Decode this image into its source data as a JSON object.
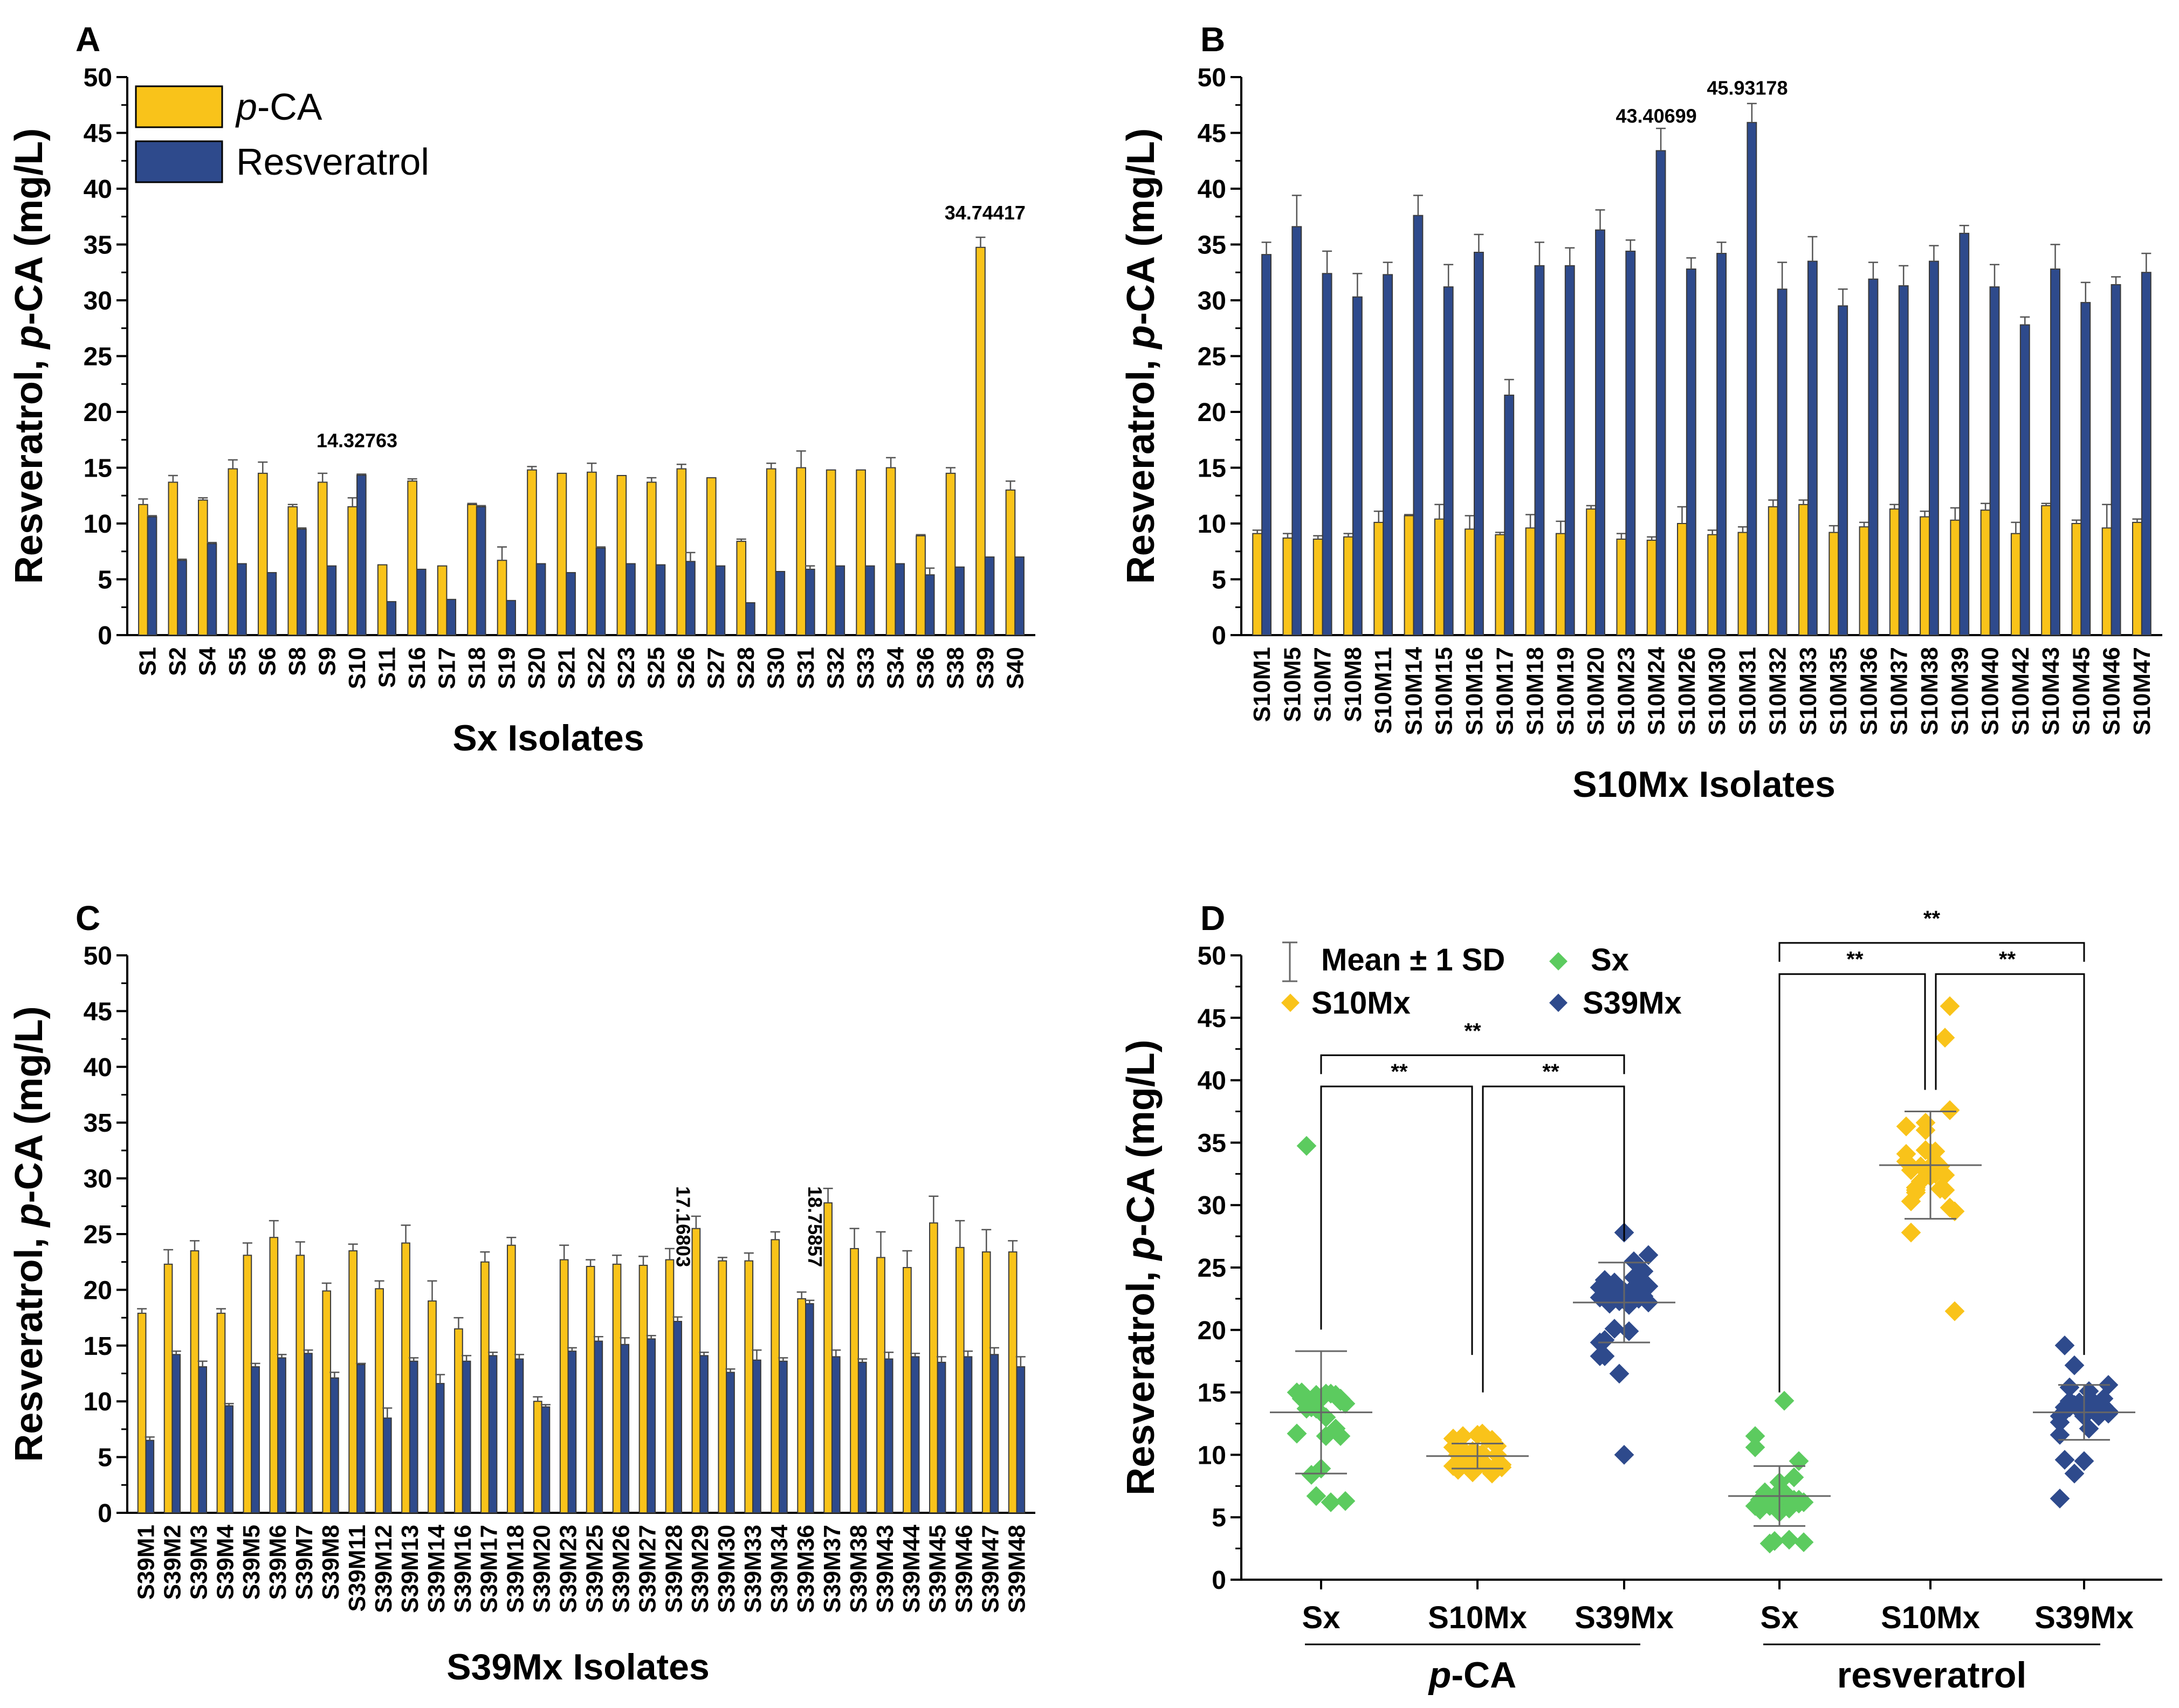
{
  "colors": {
    "pca": "#F9C31A",
    "res": "#2E4A8C",
    "green": "#5CCB5F",
    "yellow": "#F9C31A",
    "navy": "#2E4A8C"
  },
  "chart_data": [
    {
      "panel": "A",
      "type": "bar",
      "ylabel_parts": [
        "Resveratrol, ",
        "p",
        "-CA (mg/L)"
      ],
      "xlabel": "Sx Isolates",
      "ylim": [
        0,
        50
      ],
      "yticks": [
        0,
        5,
        10,
        15,
        20,
        25,
        30,
        35,
        40,
        45,
        50
      ],
      "legend": [
        {
          "name": "p-CA",
          "italic": "p",
          "rest": "-CA"
        },
        {
          "name": "Resveratrol"
        }
      ],
      "categories": [
        "S1",
        "S2",
        "S4",
        "S5",
        "S6",
        "S8",
        "S9",
        "S10",
        "S11",
        "S16",
        "S17",
        "S18",
        "S19",
        "S20",
        "S21",
        "S22",
        "S23",
        "S25",
        "S26",
        "S27",
        "S28",
        "S30",
        "S31",
        "S32",
        "S33",
        "S34",
        "S36",
        "S38",
        "S39",
        "S40"
      ],
      "series": [
        {
          "name": "p-CA",
          "values": [
            11.7,
            13.7,
            12.1,
            14.9,
            14.5,
            11.5,
            13.7,
            11.5,
            6.3,
            13.8,
            6.2,
            11.7,
            6.7,
            14.8,
            14.5,
            14.6,
            14.3,
            13.7,
            14.9,
            14.1,
            8.4,
            14.9,
            15.0,
            14.8,
            14.8,
            15.0,
            8.9,
            14.5,
            34.74417,
            13.0
          ],
          "errors": [
            0.5,
            0.6,
            0.2,
            0.8,
            1.0,
            0.2,
            0.8,
            0.8,
            0,
            0.2,
            0,
            0.1,
            1.2,
            0.3,
            0,
            0.8,
            0,
            0.4,
            0.4,
            0,
            0.2,
            0.5,
            1.5,
            0,
            0,
            0.9,
            0.1,
            0.5,
            0.9,
            0.8
          ]
        },
        {
          "name": "Resveratrol",
          "values": [
            10.6,
            6.7,
            8.2,
            6.4,
            5.6,
            9.5,
            6.2,
            14.32763,
            3.0,
            5.9,
            3.2,
            11.5,
            3.1,
            6.4,
            5.6,
            7.8,
            6.4,
            6.3,
            6.6,
            6.2,
            2.9,
            5.7,
            5.9,
            6.2,
            6.2,
            6.4,
            5.4,
            6.1,
            7.0,
            7.0
          ],
          "errors": [
            0.1,
            0.1,
            0.1,
            0,
            0,
            0.1,
            0,
            0.1,
            0,
            0,
            0,
            0.1,
            0,
            0,
            0,
            0.1,
            0,
            0,
            0.8,
            0,
            0,
            0,
            0.3,
            0,
            0,
            0,
            0.6,
            0,
            0,
            0
          ]
        }
      ],
      "annotations": [
        {
          "text": "14.32763",
          "category": "S10",
          "value": 14.32763
        },
        {
          "text": "34.74417",
          "category": "S39",
          "value": 34.74417
        }
      ]
    },
    {
      "panel": "B",
      "type": "bar",
      "ylabel_parts": [
        "Resveratrol, ",
        "p",
        "-CA (mg/L)"
      ],
      "xlabel": "S10Mx Isolates",
      "ylim": [
        0,
        50
      ],
      "yticks": [
        0,
        5,
        10,
        15,
        20,
        25,
        30,
        35,
        40,
        45,
        50
      ],
      "categories": [
        "S10M1",
        "S10M5",
        "S10M7",
        "S10M8",
        "S10M11",
        "S10M14",
        "S10M15",
        "S10M16",
        "S10M17",
        "S10M18",
        "S10M19",
        "S10M20",
        "S10M23",
        "S10M24",
        "S10M26",
        "S10M30",
        "S10M31",
        "S10M32",
        "S10M33",
        "S10M35",
        "S10M36",
        "S10M37",
        "S10M38",
        "S10M39",
        "S10M40",
        "S10M42",
        "S10M43",
        "S10M45",
        "S10M46",
        "S10M47"
      ],
      "series": [
        {
          "name": "p-CA",
          "values": [
            9.1,
            8.7,
            8.6,
            8.8,
            10.1,
            10.7,
            10.4,
            9.5,
            9.0,
            9.6,
            9.1,
            11.3,
            8.6,
            8.5,
            10.0,
            9.0,
            9.2,
            11.5,
            11.7,
            9.2,
            9.7,
            11.3,
            10.6,
            10.3,
            11.2,
            9.1,
            11.6,
            10.0,
            9.6,
            10.1
          ],
          "errors": [
            0.3,
            0.4,
            0.3,
            0.3,
            1.0,
            0.1,
            1.3,
            1.2,
            0.2,
            1.2,
            1.1,
            0.3,
            0.5,
            0.3,
            1.5,
            0.4,
            0.5,
            0.6,
            0.4,
            0.6,
            0.4,
            0.4,
            0.5,
            1.1,
            0.6,
            1.0,
            0.2,
            0.3,
            2.1,
            0.3
          ]
        },
        {
          "name": "Resveratrol",
          "values": [
            34.1,
            36.6,
            32.4,
            30.3,
            32.3,
            37.6,
            31.2,
            34.3,
            21.5,
            33.1,
            33.1,
            36.3,
            34.4,
            43.40699,
            32.8,
            34.2,
            45.93178,
            31.0,
            33.5,
            29.5,
            31.9,
            31.3,
            33.5,
            36.0,
            31.2,
            27.8,
            32.8,
            29.8,
            31.4,
            32.5
          ],
          "errors": [
            1.1,
            2.8,
            2.0,
            2.1,
            1.1,
            1.8,
            2.0,
            1.6,
            1.4,
            2.1,
            1.6,
            1.8,
            1.0,
            2.0,
            1.0,
            1.0,
            1.7,
            2.4,
            2.2,
            1.5,
            1.5,
            1.8,
            1.4,
            0.7,
            2.0,
            0.7,
            2.2,
            1.8,
            0.7,
            1.7
          ]
        }
      ],
      "annotations": [
        {
          "text": "43.40699",
          "category": "S10M24",
          "value": 43.40699
        },
        {
          "text": "45.93178",
          "category": "S10M31",
          "value": 45.93178
        }
      ]
    },
    {
      "panel": "C",
      "type": "bar",
      "ylabel_parts": [
        "Resveratrol, ",
        "p",
        "-CA (mg/L)"
      ],
      "xlabel": "S39Mx Isolates",
      "ylim": [
        0,
        50
      ],
      "yticks": [
        0,
        5,
        10,
        15,
        20,
        25,
        30,
        35,
        40,
        45,
        50
      ],
      "categories": [
        "S39M1",
        "S39M2",
        "S39M3",
        "S39M4",
        "S39M5",
        "S39M6",
        "S39M7",
        "S39M8",
        "S39M11",
        "S39M12",
        "S39M13",
        "S39M14",
        "S39M16",
        "S39M17",
        "S39M18",
        "S39M20",
        "S39M23",
        "S39M25",
        "S39M26",
        "S39M27",
        "S39M28",
        "S39M29",
        "S39M30",
        "S39M33",
        "S39M34",
        "S39M36",
        "S39M37",
        "S39M38",
        "S39M43",
        "S39M44",
        "S39M45",
        "S39M46",
        "S39M47",
        "S39M48"
      ],
      "series": [
        {
          "name": "p-CA",
          "values": [
            17.9,
            22.3,
            23.5,
            17.9,
            23.1,
            24.7,
            23.1,
            19.9,
            23.5,
            20.1,
            24.2,
            19.0,
            16.5,
            22.5,
            24.0,
            10.0,
            22.7,
            22.1,
            22.3,
            22.2,
            22.7,
            25.5,
            22.6,
            22.6,
            24.5,
            19.2,
            27.8,
            23.7,
            22.9,
            22.0,
            26.0,
            23.8,
            23.4,
            23.4
          ],
          "errors": [
            0.4,
            1.3,
            0.9,
            0.4,
            1.1,
            1.5,
            1.2,
            0.7,
            0.6,
            0.7,
            1.6,
            1.8,
            1.0,
            0.9,
            0.7,
            0.4,
            1.3,
            0.6,
            0.8,
            0.8,
            1.0,
            1.1,
            0.3,
            0.7,
            0.7,
            0.6,
            1.3,
            1.8,
            2.3,
            1.5,
            2.4,
            2.4,
            2.0,
            1.0
          ]
        },
        {
          "name": "Resveratrol",
          "values": [
            6.5,
            14.2,
            13.1,
            9.6,
            13.1,
            13.9,
            14.3,
            12.1,
            13.3,
            8.5,
            13.6,
            11.6,
            13.6,
            14.1,
            13.8,
            9.5,
            14.5,
            15.4,
            15.1,
            15.6,
            17.16803,
            14.1,
            12.6,
            13.7,
            13.6,
            18.75857,
            14.0,
            13.5,
            13.8,
            14.0,
            13.5,
            14.0,
            14.2,
            13.1
          ],
          "errors": [
            0.3,
            0.3,
            0.5,
            0.2,
            0.3,
            0.3,
            0.3,
            0.5,
            0.1,
            0.9,
            0.3,
            0.8,
            0.5,
            0.3,
            0.4,
            0.2,
            0.3,
            0.4,
            0.6,
            0.3,
            0.4,
            0.3,
            0.3,
            0.9,
            0.3,
            0.3,
            0.6,
            0.3,
            0.6,
            0.3,
            0.5,
            0.5,
            0.6,
            0.9
          ]
        }
      ],
      "annotations": [
        {
          "text": "17.16803",
          "category": "S39M28",
          "value": 17.16803,
          "rotated": true
        },
        {
          "text": "18.75857",
          "category": "S39M36",
          "value": 18.75857,
          "rotated": true
        }
      ]
    },
    {
      "panel": "D",
      "type": "scatter",
      "ylabel_parts": [
        "Resveratrol, ",
        "p",
        "-CA (mg/L)"
      ],
      "ylim": [
        0,
        50
      ],
      "yticks": [
        0,
        5,
        10,
        15,
        20,
        25,
        30,
        35,
        40,
        45,
        50
      ],
      "categories": [
        "Sx",
        "S10Mx",
        "S39Mx",
        "Sx",
        "S10Mx",
        "S39Mx"
      ],
      "groups": [
        {
          "label_parts": [
            "p",
            "-CA"
          ],
          "span": [
            0,
            2
          ]
        },
        {
          "label_parts": [
            "resveratrol"
          ],
          "span": [
            3,
            5
          ]
        }
      ],
      "legend": [
        {
          "name": "Mean ± 1 SD",
          "marker": "errorbar"
        },
        {
          "name": "Sx",
          "marker": "green"
        },
        {
          "name": "S10Mx",
          "marker": "yellow"
        },
        {
          "name": "S39Mx",
          "marker": "navy"
        }
      ],
      "series": [
        {
          "name": "Sx p-CA",
          "color": "green",
          "mean": 13.4,
          "sd": 4.9,
          "values": [
            11.7,
            13.7,
            12.1,
            14.9,
            14.5,
            11.5,
            13.7,
            11.5,
            6.3,
            13.8,
            6.2,
            11.7,
            6.7,
            14.8,
            14.5,
            14.6,
            14.3,
            13.7,
            14.9,
            14.1,
            8.4,
            14.9,
            15.0,
            14.8,
            14.8,
            15.0,
            8.9,
            14.5,
            34.74417,
            13.0
          ]
        },
        {
          "name": "S10Mx p-CA",
          "color": "yellow",
          "mean": 9.9,
          "sd": 1.0,
          "values": [
            9.1,
            8.7,
            8.6,
            8.8,
            10.1,
            10.7,
            10.4,
            9.5,
            9.0,
            9.6,
            9.1,
            11.3,
            8.6,
            8.5,
            10.0,
            9.0,
            9.2,
            11.5,
            11.7,
            9.2,
            9.7,
            11.3,
            10.6,
            10.3,
            11.2,
            9.1,
            11.6,
            10.0,
            9.6,
            10.1
          ]
        },
        {
          "name": "S39Mx p-CA",
          "color": "navy",
          "mean": 22.2,
          "sd": 3.2,
          "values": [
            17.9,
            22.3,
            23.5,
            17.9,
            23.1,
            24.7,
            23.1,
            19.9,
            23.5,
            20.1,
            24.2,
            19.0,
            16.5,
            22.5,
            24.0,
            10.0,
            22.7,
            22.1,
            22.3,
            22.2,
            22.7,
            25.5,
            22.6,
            22.6,
            24.5,
            19.2,
            27.8,
            23.7,
            22.9,
            22.0,
            26.0,
            23.8,
            23.4,
            23.4
          ]
        },
        {
          "name": "Sx resveratrol",
          "color": "green",
          "mean": 6.7,
          "sd": 2.4,
          "values": [
            10.6,
            6.7,
            8.2,
            6.4,
            5.6,
            9.5,
            6.2,
            14.32763,
            3.0,
            5.9,
            3.2,
            11.5,
            3.1,
            6.4,
            5.6,
            7.8,
            6.4,
            6.3,
            6.6,
            6.2,
            2.9,
            5.7,
            5.9,
            6.2,
            6.2,
            6.4,
            5.4,
            6.1,
            7.0,
            7.0
          ]
        },
        {
          "name": "S10Mx resveratrol",
          "color": "yellow",
          "mean": 33.2,
          "sd": 4.3,
          "values": [
            34.1,
            36.6,
            32.4,
            30.3,
            32.3,
            37.6,
            31.2,
            34.3,
            21.5,
            33.1,
            33.1,
            36.3,
            34.4,
            43.40699,
            32.8,
            34.2,
            45.93178,
            31.0,
            33.5,
            29.5,
            31.9,
            31.3,
            33.5,
            36.0,
            31.2,
            27.8,
            32.8,
            29.8,
            31.4,
            32.5
          ]
        },
        {
          "name": "S39Mx resveratrol",
          "color": "navy",
          "mean": 13.4,
          "sd": 2.2,
          "values": [
            6.5,
            14.2,
            13.1,
            9.6,
            13.1,
            13.9,
            14.3,
            12.1,
            13.3,
            8.5,
            13.6,
            11.6,
            13.6,
            14.1,
            13.8,
            9.5,
            14.5,
            15.4,
            15.1,
            15.6,
            17.16803,
            14.1,
            12.6,
            13.7,
            13.6,
            18.75857,
            14.0,
            13.5,
            13.8,
            14.0,
            13.5,
            14.0,
            14.2,
            13.1
          ]
        }
      ],
      "significance": [
        {
          "text": "**",
          "from": 0,
          "to": 1,
          "level": 39.5
        },
        {
          "text": "**",
          "from": 1,
          "to": 2,
          "level": 39.5
        },
        {
          "text": "**",
          "from": 0,
          "to": 2,
          "level": 42.0
        },
        {
          "text": "**",
          "from": 3,
          "to": 4,
          "level": 48.5
        },
        {
          "text": "**",
          "from": 4,
          "to": 5,
          "level": 48.5
        },
        {
          "text": "**",
          "from": 3,
          "to": 5,
          "level": 51.0
        }
      ]
    }
  ]
}
